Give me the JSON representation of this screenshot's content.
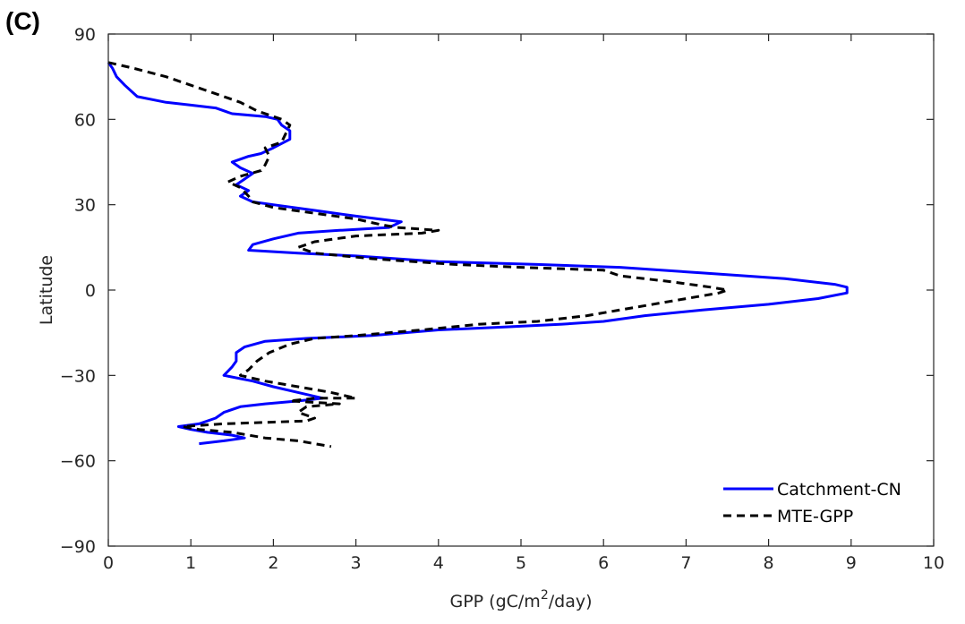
{
  "panel_label": "(C)",
  "chart_data": {
    "type": "line",
    "title": "",
    "xlabel": "GPP (gC/m²/day)",
    "xlabel_parts": {
      "before": "GPP (gC/m",
      "sup": "2",
      "after": "/day)"
    },
    "ylabel": "Latitude",
    "xlim": [
      0,
      10
    ],
    "ylim": [
      -90,
      90
    ],
    "x_ticks": [
      0,
      1,
      2,
      3,
      4,
      5,
      6,
      7,
      8,
      9,
      10
    ],
    "y_ticks": [
      -90,
      -60,
      -30,
      0,
      30,
      60,
      90
    ],
    "x_tick_labels": [
      "0",
      "1",
      "2",
      "3",
      "4",
      "5",
      "6",
      "7",
      "8",
      "9",
      "10"
    ],
    "y_tick_labels": [
      "−90",
      "−60",
      "−30",
      "0",
      "30",
      "60",
      "90"
    ],
    "grid": false,
    "legend_position": "bottom-right",
    "series": [
      {
        "name": "Catchment-CN",
        "color": "#0000ff",
        "style": "solid",
        "points": [
          [
            0.0,
            80
          ],
          [
            0.05,
            78
          ],
          [
            0.1,
            75
          ],
          [
            0.2,
            72
          ],
          [
            0.35,
            68
          ],
          [
            0.7,
            66
          ],
          [
            1.0,
            65
          ],
          [
            1.3,
            64
          ],
          [
            1.5,
            62
          ],
          [
            1.9,
            61
          ],
          [
            2.05,
            60
          ],
          [
            2.1,
            58
          ],
          [
            2.2,
            56
          ],
          [
            2.2,
            53
          ],
          [
            2.0,
            50
          ],
          [
            1.85,
            48
          ],
          [
            1.7,
            47
          ],
          [
            1.6,
            46
          ],
          [
            1.5,
            45
          ],
          [
            1.6,
            43
          ],
          [
            1.75,
            41
          ],
          [
            1.65,
            39
          ],
          [
            1.55,
            37
          ],
          [
            1.7,
            35
          ],
          [
            1.6,
            33
          ],
          [
            1.75,
            31
          ],
          [
            2.0,
            30
          ],
          [
            2.5,
            28
          ],
          [
            3.0,
            26
          ],
          [
            3.55,
            24
          ],
          [
            3.4,
            22
          ],
          [
            2.8,
            21
          ],
          [
            2.3,
            20
          ],
          [
            2.0,
            18
          ],
          [
            1.75,
            16
          ],
          [
            1.7,
            14
          ],
          [
            2.3,
            13
          ],
          [
            3.0,
            12
          ],
          [
            4.0,
            10
          ],
          [
            5.2,
            9
          ],
          [
            6.2,
            8
          ],
          [
            7.2,
            6
          ],
          [
            8.2,
            4
          ],
          [
            8.8,
            2
          ],
          [
            8.95,
            1
          ],
          [
            8.95,
            -1
          ],
          [
            8.6,
            -3
          ],
          [
            8.0,
            -5
          ],
          [
            7.2,
            -7
          ],
          [
            6.5,
            -9
          ],
          [
            6.0,
            -11
          ],
          [
            5.5,
            -12
          ],
          [
            4.8,
            -13
          ],
          [
            4.0,
            -14
          ],
          [
            3.2,
            -16
          ],
          [
            2.4,
            -17
          ],
          [
            1.9,
            -18
          ],
          [
            1.65,
            -20
          ],
          [
            1.55,
            -22
          ],
          [
            1.55,
            -25
          ],
          [
            1.5,
            -27
          ],
          [
            1.4,
            -30
          ],
          [
            1.75,
            -32
          ],
          [
            2.0,
            -34
          ],
          [
            2.3,
            -36
          ],
          [
            2.6,
            -38
          ],
          [
            2.3,
            -39
          ],
          [
            1.9,
            -40
          ],
          [
            1.6,
            -41
          ],
          [
            1.4,
            -43
          ],
          [
            1.3,
            -45
          ],
          [
            1.1,
            -47
          ],
          [
            0.85,
            -48
          ],
          [
            1.0,
            -49
          ],
          [
            1.2,
            -50
          ],
          [
            1.5,
            -51
          ],
          [
            1.65,
            -52
          ],
          [
            1.4,
            -53
          ],
          [
            1.1,
            -54
          ]
        ]
      },
      {
        "name": "MTE-GPP",
        "color": "#000000",
        "style": "dashed",
        "points": [
          [
            0.0,
            80
          ],
          [
            0.3,
            78
          ],
          [
            0.7,
            75
          ],
          [
            1.0,
            72
          ],
          [
            1.3,
            69
          ],
          [
            1.6,
            66
          ],
          [
            1.8,
            63
          ],
          [
            2.1,
            60
          ],
          [
            2.2,
            58
          ],
          [
            2.15,
            55
          ],
          [
            2.1,
            52
          ],
          [
            1.9,
            50
          ],
          [
            1.95,
            47
          ],
          [
            1.9,
            44
          ],
          [
            1.85,
            42
          ],
          [
            1.6,
            40
          ],
          [
            1.45,
            38
          ],
          [
            1.6,
            36
          ],
          [
            1.7,
            33
          ],
          [
            1.75,
            31
          ],
          [
            2.0,
            29
          ],
          [
            2.5,
            27
          ],
          [
            3.0,
            25
          ],
          [
            3.3,
            23
          ],
          [
            3.5,
            22
          ],
          [
            4.0,
            21
          ],
          [
            3.8,
            20
          ],
          [
            3.0,
            19
          ],
          [
            2.5,
            17
          ],
          [
            2.3,
            15
          ],
          [
            2.5,
            13
          ],
          [
            3.2,
            11
          ],
          [
            4.2,
            9
          ],
          [
            5.0,
            8
          ],
          [
            6.0,
            7
          ],
          [
            6.2,
            5
          ],
          [
            6.8,
            3
          ],
          [
            7.3,
            1
          ],
          [
            7.5,
            0
          ],
          [
            7.4,
            -1
          ],
          [
            7.2,
            -2
          ],
          [
            6.8,
            -4
          ],
          [
            6.2,
            -7
          ],
          [
            5.8,
            -9
          ],
          [
            5.2,
            -11
          ],
          [
            4.5,
            -12
          ],
          [
            3.8,
            -14
          ],
          [
            3.0,
            -16
          ],
          [
            2.5,
            -17
          ],
          [
            2.2,
            -19
          ],
          [
            1.95,
            -22
          ],
          [
            1.8,
            -25
          ],
          [
            1.7,
            -28
          ],
          [
            1.6,
            -30
          ],
          [
            1.9,
            -32
          ],
          [
            2.3,
            -34
          ],
          [
            2.7,
            -36
          ],
          [
            3.0,
            -38
          ],
          [
            2.5,
            -38
          ],
          [
            2.2,
            -39
          ],
          [
            2.8,
            -40
          ],
          [
            2.4,
            -41
          ],
          [
            2.3,
            -43
          ],
          [
            2.5,
            -45
          ],
          [
            2.4,
            -46
          ],
          [
            1.4,
            -47
          ],
          [
            0.9,
            -48
          ],
          [
            1.1,
            -49
          ],
          [
            1.5,
            -50
          ],
          [
            1.9,
            -52
          ],
          [
            2.3,
            -53
          ],
          [
            2.7,
            -55
          ]
        ]
      }
    ]
  }
}
